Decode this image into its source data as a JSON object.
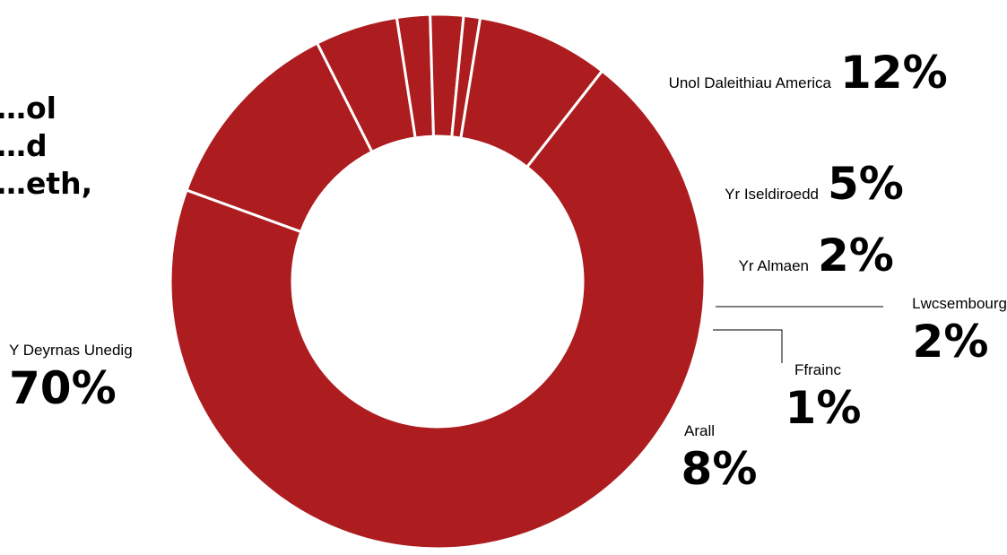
{
  "title": "…ol\n…d\n…eth,",
  "colors": {
    "slice": "#AD1C1F",
    "separator": "#ffffff",
    "leader": "#000000"
  },
  "chart_data": {
    "type": "pie",
    "variant": "donut",
    "slices": [
      {
        "label": "Unol Daleithiau America",
        "value": 12,
        "value_label": "12%"
      },
      {
        "label": "Yr Iseldiroedd",
        "value": 5,
        "value_label": "5%"
      },
      {
        "label": "Yr Almaen",
        "value": 2,
        "value_label": "2%"
      },
      {
        "label": "Lwcsembourg",
        "value": 2,
        "value_label": "2%"
      },
      {
        "label": "Ffrainc",
        "value": 1,
        "value_label": "1%"
      },
      {
        "label": "Arall",
        "value": 8,
        "value_label": "8%"
      },
      {
        "label": "Y Deyrnas Unedig",
        "value": 70,
        "value_label": "70%"
      }
    ]
  }
}
